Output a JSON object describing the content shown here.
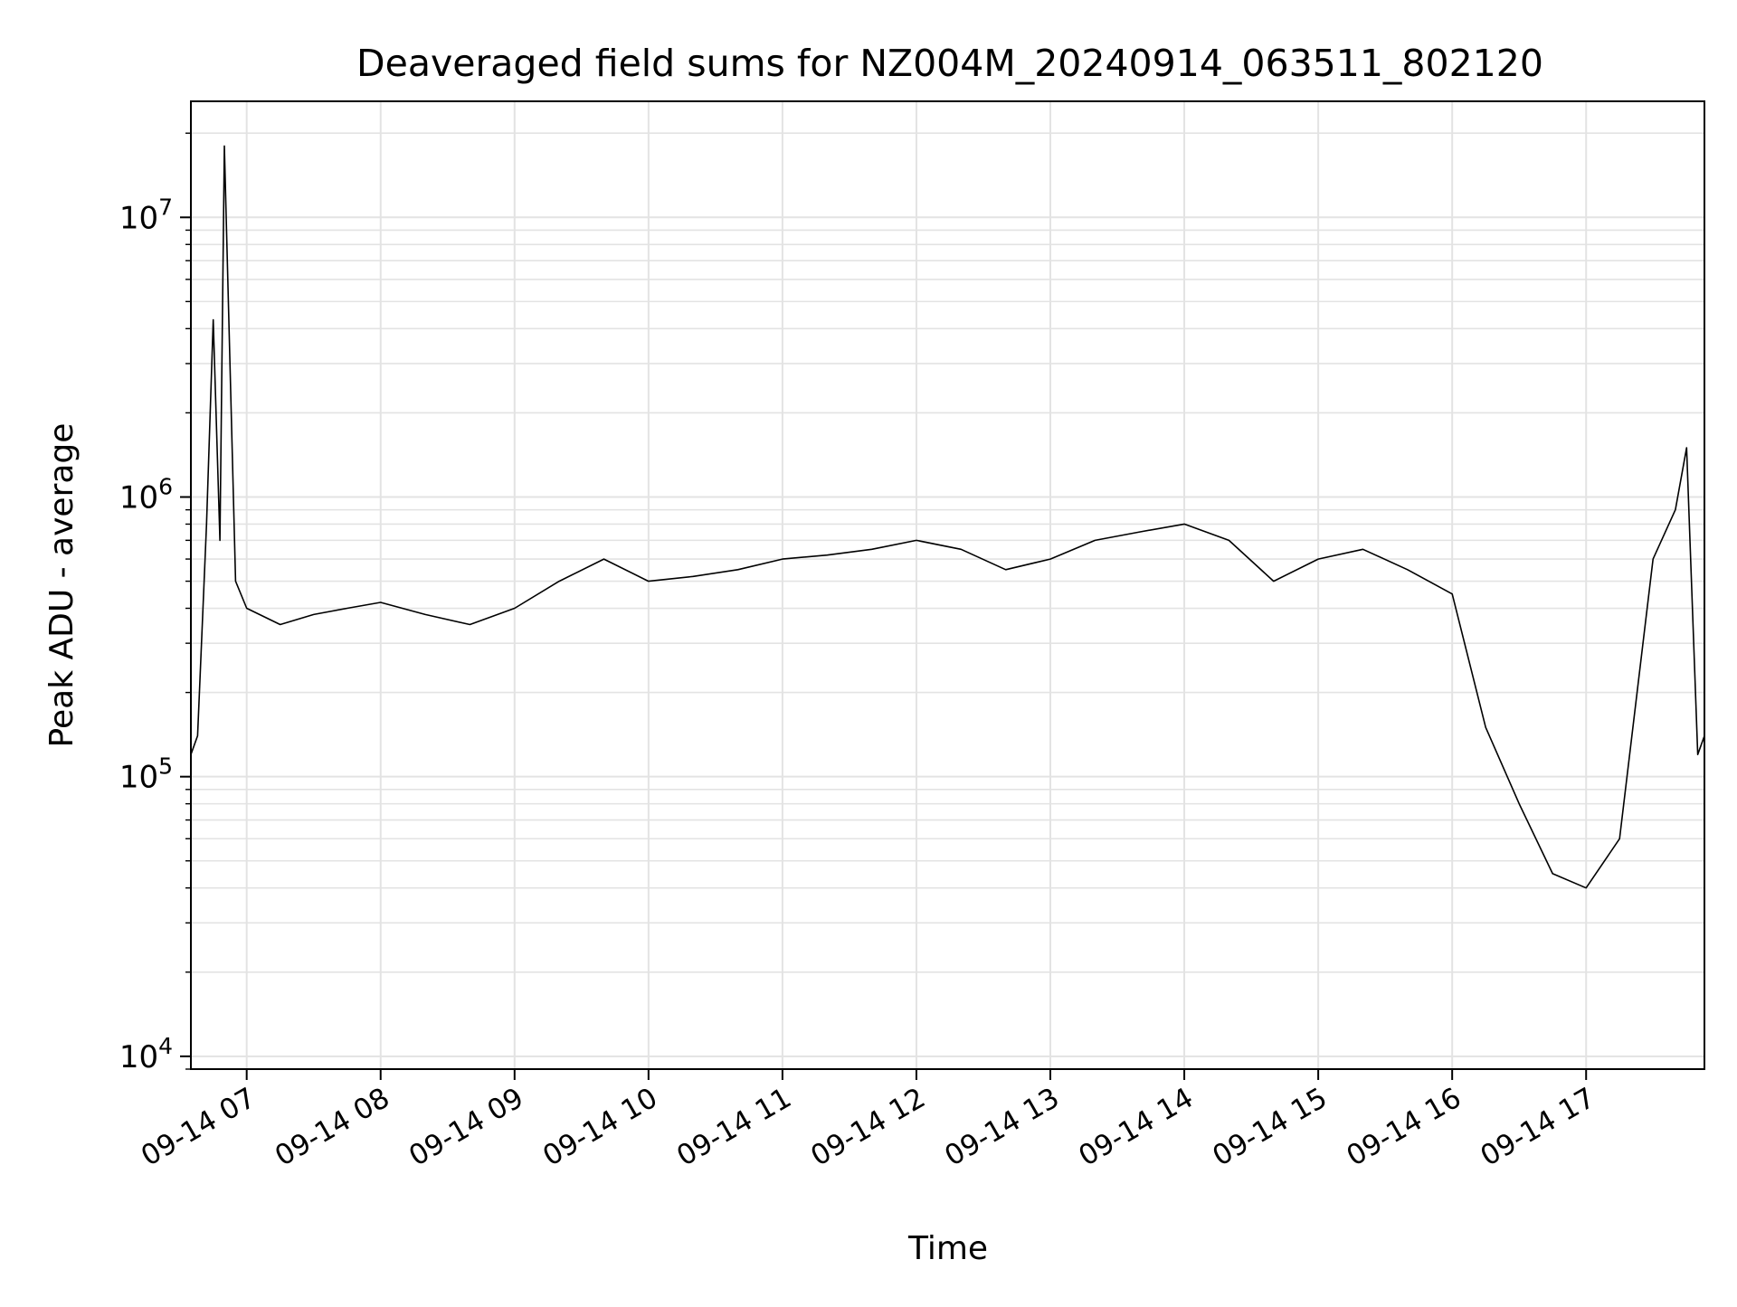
{
  "chart_data": {
    "type": "line",
    "title": "Deaveraged field sums for NZ004M_20240914_063511_802120",
    "xlabel": "Time",
    "ylabel": "Peak ADU - average",
    "yscale": "log",
    "ylim": [
      9000,
      26000000
    ],
    "xlim": [
      "2024-09-14 06:35",
      "2024-09-14 17:53"
    ],
    "grid": true,
    "line_color": "#000000",
    "x_ticks": [
      {
        "x": "2024-09-14 07:00",
        "label": "09-14 07"
      },
      {
        "x": "2024-09-14 08:00",
        "label": "09-14 08"
      },
      {
        "x": "2024-09-14 09:00",
        "label": "09-14 09"
      },
      {
        "x": "2024-09-14 10:00",
        "label": "09-14 10"
      },
      {
        "x": "2024-09-14 11:00",
        "label": "09-14 11"
      },
      {
        "x": "2024-09-14 12:00",
        "label": "09-14 12"
      },
      {
        "x": "2024-09-14 13:00",
        "label": "09-14 13"
      },
      {
        "x": "2024-09-14 14:00",
        "label": "09-14 14"
      },
      {
        "x": "2024-09-14 15:00",
        "label": "09-14 15"
      },
      {
        "x": "2024-09-14 16:00",
        "label": "09-14 16"
      },
      {
        "x": "2024-09-14 17:00",
        "label": "09-14 17"
      }
    ],
    "y_ticks": [
      {
        "value": 10000,
        "base": "10",
        "exp": "4"
      },
      {
        "value": 100000,
        "base": "10",
        "exp": "5"
      },
      {
        "value": 1000000,
        "base": "10",
        "exp": "6"
      },
      {
        "value": 10000000,
        "base": "10",
        "exp": "7"
      }
    ],
    "series": [
      {
        "x": [
          "2024-09-14 06:35",
          "2024-09-14 06:38",
          "2024-09-14 06:42",
          "2024-09-14 06:45",
          "2024-09-14 06:48",
          "2024-09-14 06:50",
          "2024-09-14 06:55",
          "2024-09-14 07:00",
          "2024-09-14 07:15",
          "2024-09-14 07:30",
          "2024-09-14 07:45",
          "2024-09-14 08:00",
          "2024-09-14 08:20",
          "2024-09-14 08:40",
          "2024-09-14 09:00",
          "2024-09-14 09:20",
          "2024-09-14 09:40",
          "2024-09-14 10:00",
          "2024-09-14 10:20",
          "2024-09-14 10:40",
          "2024-09-14 11:00",
          "2024-09-14 11:20",
          "2024-09-14 11:40",
          "2024-09-14 12:00",
          "2024-09-14 12:20",
          "2024-09-14 12:40",
          "2024-09-14 13:00",
          "2024-09-14 13:20",
          "2024-09-14 13:40",
          "2024-09-14 14:00",
          "2024-09-14 14:20",
          "2024-09-14 14:40",
          "2024-09-14 15:00",
          "2024-09-14 15:20",
          "2024-09-14 15:40",
          "2024-09-14 16:00",
          "2024-09-14 16:15",
          "2024-09-14 16:30",
          "2024-09-14 16:45",
          "2024-09-14 17:00",
          "2024-09-14 17:15",
          "2024-09-14 17:30",
          "2024-09-14 17:40",
          "2024-09-14 17:45",
          "2024-09-14 17:50",
          "2024-09-14 17:53"
        ],
        "y": [
          120000,
          140000,
          800000,
          4300000,
          700000,
          18000000,
          500000,
          400000,
          350000,
          380000,
          400000,
          420000,
          380000,
          350000,
          400000,
          500000,
          600000,
          500000,
          520000,
          550000,
          600000,
          620000,
          650000,
          700000,
          650000,
          550000,
          600000,
          700000,
          750000,
          800000,
          700000,
          500000,
          600000,
          650000,
          550000,
          450000,
          150000,
          80000,
          45000,
          40000,
          60000,
          600000,
          900000,
          1500000,
          120000,
          140000
        ]
      }
    ]
  }
}
